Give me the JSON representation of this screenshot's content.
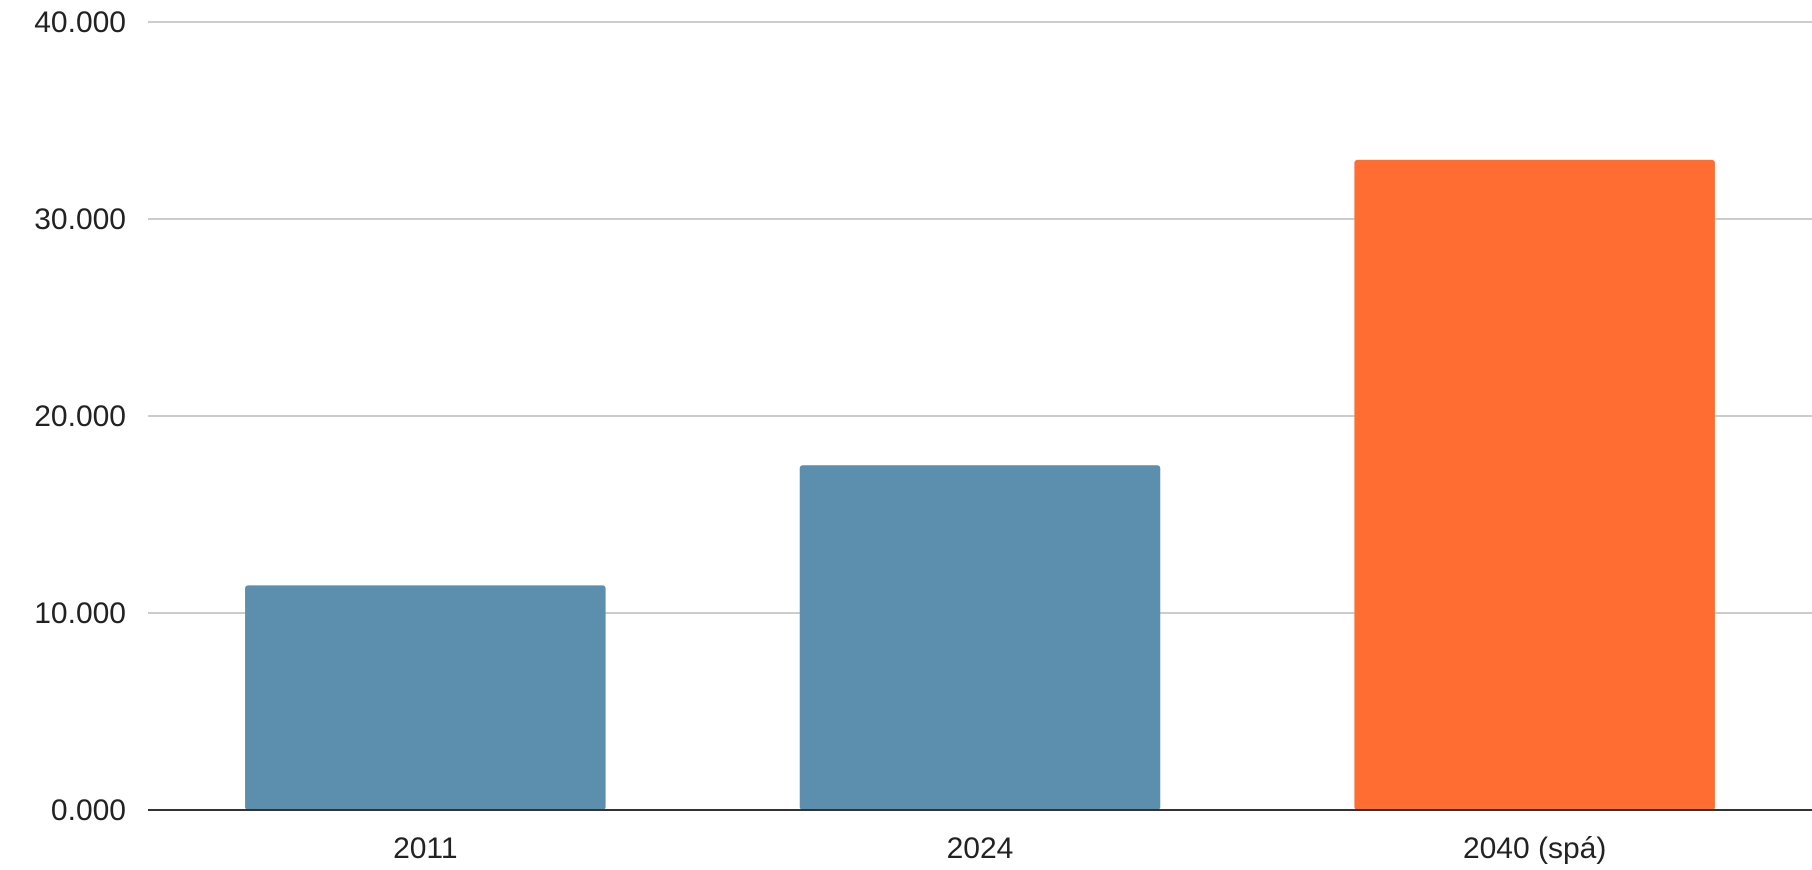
{
  "chart_data": {
    "type": "bar",
    "categories": [
      "2011",
      "2024",
      "2040 (spá)"
    ],
    "values": [
      11400,
      17500,
      33000
    ],
    "bar_colors": [
      "#5b8fad",
      "#5b8fad",
      "#ff6d33"
    ],
    "ylim": [
      0,
      40000
    ],
    "yticks": [
      0,
      10000,
      20000,
      30000,
      40000
    ],
    "ytick_labels": [
      "0.000",
      "10.000",
      "20.000",
      "30.000",
      "40.000"
    ],
    "title": "",
    "xlabel": "",
    "ylabel": "",
    "grid": true,
    "legend": "none"
  },
  "colors": {
    "grid": "#cccccc",
    "baseline": "#333333",
    "text": "#222222"
  }
}
